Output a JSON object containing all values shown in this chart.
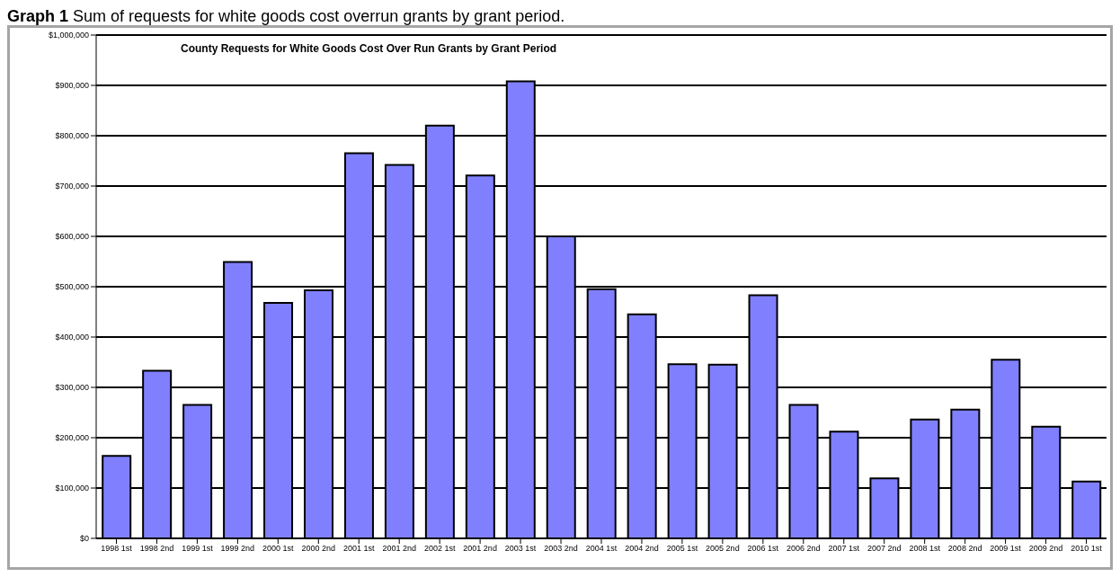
{
  "chart_data": {
    "type": "bar",
    "title": "County Requests for White Goods Cost Over Run Grants by Grant Period",
    "annotations": [
      "Graph 1 Sum of requests for white goods cost overrun grants by grant period."
    ],
    "categories": [
      "1998 1st",
      "1998 2nd",
      "1999 1st",
      "1999 2nd",
      "2000 1st",
      "2000 2nd",
      "2001 1st",
      "2001 2nd",
      "2002 1st",
      "2001 2nd",
      "2003 1st",
      "2003 2nd",
      "2004 1st",
      "2004 2nd",
      "2005 1st",
      "2005 2nd",
      "2006 1st",
      "2006 2nd",
      "2007 1st",
      "2007 2nd",
      "2008 1st",
      "2008 2nd",
      "2009 1st",
      "2009 2nd",
      "2010 1st"
    ],
    "values": [
      164000,
      333000,
      265000,
      549000,
      468000,
      493000,
      765000,
      742000,
      820000,
      721000,
      908000,
      600000,
      495000,
      445000,
      346000,
      345000,
      483000,
      265000,
      212000,
      119000,
      236000,
      256000,
      355000,
      222000,
      113000
    ],
    "color": "#8080ff",
    "ylim": [
      0,
      1000000
    ],
    "yticks": [
      {
        "value": 0,
        "label": "$0"
      },
      {
        "value": 100000,
        "label": "$100,000"
      },
      {
        "value": 200000,
        "label": "$200,000"
      },
      {
        "value": 300000,
        "label": "$300,000"
      },
      {
        "value": 400000,
        "label": "$400,000"
      },
      {
        "value": 500000,
        "label": "$500,000"
      },
      {
        "value": 600000,
        "label": "$600,000"
      },
      {
        "value": 700000,
        "label": "$700,000"
      },
      {
        "value": 800000,
        "label": "$800,000"
      },
      {
        "value": 900000,
        "label": "$900,000"
      },
      {
        "value": 1000000,
        "label": "$1,000,000"
      }
    ],
    "grid": "y",
    "legend": false
  }
}
